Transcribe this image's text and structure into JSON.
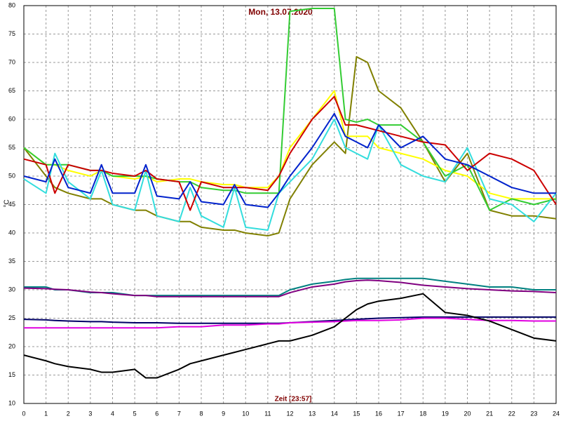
{
  "chart_data": {
    "type": "line",
    "title": "Mon, 13.07.2020",
    "x_label": "Zeit [23:57]",
    "y_label": "°C",
    "grid": true,
    "xlim": [
      0,
      24
    ],
    "xticks": [
      0,
      1,
      2,
      3,
      4,
      5,
      6,
      7,
      8,
      9,
      10,
      11,
      12,
      13,
      14,
      15,
      16,
      17,
      18,
      19,
      20,
      21,
      22,
      23,
      24
    ],
    "ylim": [
      10,
      80
    ],
    "yticks": [
      10,
      15,
      20,
      25,
      30,
      35,
      40,
      45,
      50,
      55,
      60,
      65,
      70,
      75,
      80
    ],
    "x": [
      0,
      1,
      1.4,
      2,
      3,
      3.5,
      4,
      5,
      5.5,
      6,
      7,
      7.5,
      8,
      9,
      9.5,
      10,
      11,
      11.5,
      12,
      13,
      14,
      14.5,
      15,
      15.5,
      16,
      17,
      18,
      19,
      20,
      21,
      22,
      23,
      24
    ],
    "series": [
      {
        "color": "#808000",
        "values": [
          55,
          50,
          48,
          47,
          46,
          46,
          45,
          44,
          44,
          43,
          42,
          42,
          41,
          40.5,
          40.5,
          40,
          39.5,
          40,
          46,
          52,
          56,
          54,
          71,
          70,
          65,
          62,
          56,
          49,
          54,
          44,
          43,
          43,
          42.5
        ]
      },
      {
        "color": "#ffff00",
        "values": [
          55,
          52,
          52,
          51,
          50,
          51,
          50,
          49.5,
          50,
          49,
          49.5,
          49.5,
          49,
          48.5,
          48.5,
          48,
          48,
          50,
          55,
          60,
          65,
          57,
          57,
          57,
          55,
          54,
          53,
          51,
          50,
          47,
          46,
          46,
          46
        ]
      },
      {
        "color": "#33cc33",
        "values": [
          55,
          52,
          52,
          52,
          51,
          51,
          50,
          50,
          50,
          49.5,
          49,
          49,
          48,
          47.5,
          47.5,
          47,
          47,
          47,
          79,
          79.5,
          79.5,
          60,
          59.5,
          60,
          59,
          59,
          56,
          50,
          52,
          44,
          46,
          45,
          46
        ]
      },
      {
        "color": "#33dddd",
        "values": [
          49.5,
          47,
          54,
          49,
          46,
          51,
          45,
          44,
          51,
          43,
          42,
          48,
          43,
          41,
          48,
          41,
          40.5,
          47,
          49,
          53,
          60,
          55,
          54,
          53,
          59,
          52,
          50,
          49,
          55,
          46,
          45,
          42,
          47
        ]
      },
      {
        "color": "#cc0000",
        "values": [
          53,
          52,
          47,
          52,
          51,
          51,
          50.5,
          50,
          51,
          49.5,
          49,
          44,
          49,
          48,
          48,
          48,
          47.5,
          50,
          54,
          60,
          64,
          59,
          59,
          58.5,
          58,
          57,
          56,
          55.5,
          51,
          54,
          53,
          51,
          45
        ]
      },
      {
        "color": "#0022cc",
        "values": [
          50,
          49,
          53,
          48,
          47,
          52,
          47,
          47,
          52,
          46.5,
          46,
          49,
          45.5,
          45,
          48.5,
          45,
          44.5,
          47,
          50,
          55,
          61,
          57,
          56,
          55,
          59,
          55,
          57,
          53,
          52,
          50,
          48,
          47,
          47
        ]
      },
      {
        "color": "#008080",
        "values": [
          30.5,
          30.5,
          30,
          30,
          29.5,
          29.5,
          29.5,
          29,
          29,
          29,
          29,
          29,
          29,
          29,
          29,
          29,
          29,
          29,
          30,
          31,
          31.5,
          31.8,
          32,
          32,
          32,
          32,
          32,
          31.5,
          31,
          30.5,
          30.5,
          30,
          30
        ]
      },
      {
        "color": "#800080",
        "values": [
          30.3,
          30.2,
          30.1,
          30,
          29.6,
          29.5,
          29.3,
          29,
          29,
          28.8,
          28.8,
          28.8,
          28.8,
          28.8,
          28.8,
          28.8,
          28.8,
          28.8,
          29.5,
          30.5,
          31,
          31.4,
          31.6,
          31.7,
          31.6,
          31.3,
          30.8,
          30.5,
          30.2,
          30,
          29.8,
          29.7,
          29.5
        ]
      },
      {
        "color": "#000066",
        "values": [
          24.8,
          24.7,
          24.6,
          24.5,
          24.4,
          24.4,
          24.3,
          24.2,
          24.2,
          24.2,
          24.1,
          24.1,
          24.1,
          24.1,
          24.1,
          24.1,
          24.1,
          24.1,
          24.2,
          24.4,
          24.6,
          24.7,
          24.8,
          24.9,
          25,
          25.1,
          25.2,
          25.2,
          25.2,
          25.2,
          25.2,
          25.2,
          25.2
        ]
      },
      {
        "color": "#e000e0",
        "values": [
          23.3,
          23.3,
          23.3,
          23.3,
          23.3,
          23.3,
          23.3,
          23.3,
          23.3,
          23.3,
          23.5,
          23.5,
          23.5,
          23.8,
          23.8,
          23.8,
          24,
          24,
          24.2,
          24.3,
          24.4,
          24.5,
          24.6,
          24.6,
          24.6,
          24.7,
          25,
          25,
          24.8,
          24.6,
          24.6,
          24.5,
          24.5
        ]
      },
      {
        "color": "#000000",
        "values": [
          18.5,
          17.5,
          17,
          16.5,
          16,
          15.5,
          15.5,
          16,
          14.5,
          14.5,
          16,
          17,
          17.5,
          18.5,
          19,
          19.5,
          20.5,
          21,
          21,
          22,
          23.5,
          25,
          26.5,
          27.5,
          28,
          28.5,
          29.3,
          26,
          25.5,
          24.5,
          23,
          21.5,
          21
        ]
      }
    ]
  }
}
